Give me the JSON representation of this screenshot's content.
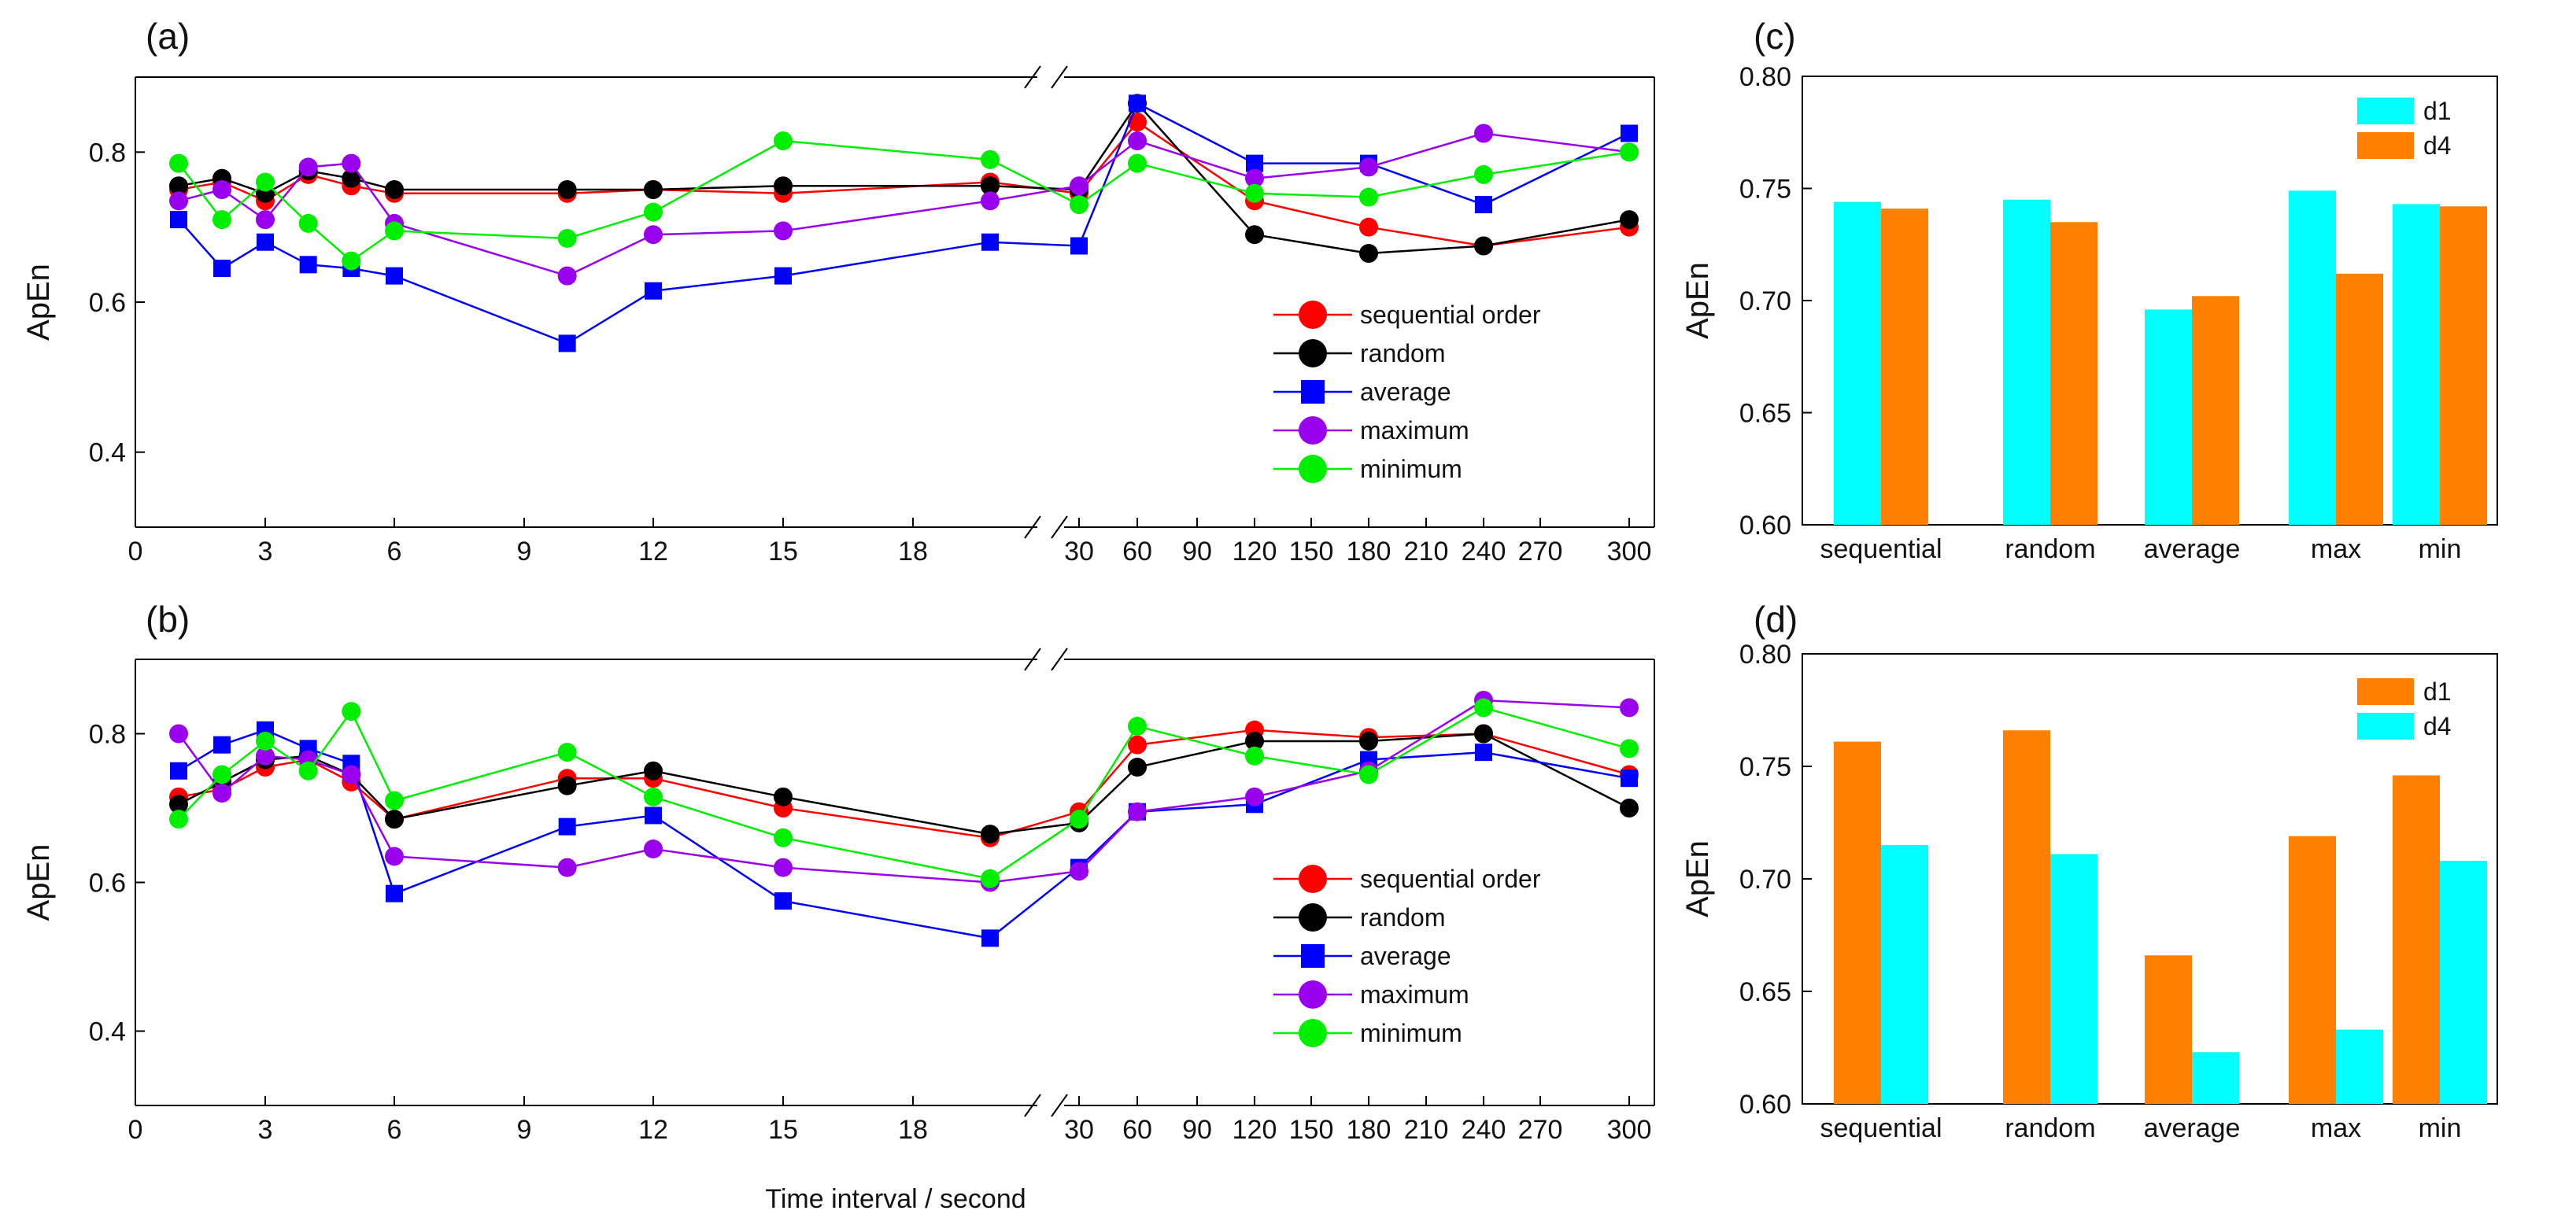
{
  "figure": {
    "xtitle": "Time interval / second"
  },
  "colors": {
    "sequential order": "#ff0000",
    "random": "#000000",
    "average": "#0000ff",
    "maximum": "#9900ee",
    "minimum": "#00ee00",
    "cyan": "#00ffff",
    "orange": "#ff8000"
  },
  "chart_data": [
    {
      "panel": "(a)",
      "type": "line",
      "ylabel": "ApEn",
      "xlabel": "",
      "ylim": [
        0.3,
        0.9
      ],
      "yticks": [
        0.4,
        0.6,
        0.8
      ],
      "ytick_labels": [
        "0.4",
        "0.6",
        "0.8"
      ],
      "x_left_ticks": [
        0,
        3,
        6,
        9,
        12,
        15,
        18
      ],
      "x_right_ticks": [
        30,
        60,
        90,
        120,
        150,
        180,
        210,
        240,
        270,
        300
      ],
      "x_break": "axis break between 20 and 30 (left segment 0–23, right segment 30–300)",
      "legend": [
        "sequential order",
        "random",
        "average",
        "maximum",
        "minimum"
      ],
      "series": [
        {
          "name": "sequential order",
          "marker": "circle",
          "x": [
            1,
            2,
            3,
            4,
            5,
            6,
            10,
            12,
            15,
            20,
            30,
            60,
            120,
            180,
            240,
            300
          ],
          "values": [
            0.75,
            0.76,
            0.735,
            0.77,
            0.755,
            0.745,
            0.745,
            0.75,
            0.745,
            0.76,
            0.745,
            0.84,
            0.735,
            0.7,
            0.675,
            0.7
          ]
        },
        {
          "name": "random",
          "marker": "circle",
          "x": [
            1,
            2,
            3,
            4,
            5,
            6,
            10,
            12,
            15,
            20,
            30,
            60,
            120,
            180,
            240,
            300
          ],
          "values": [
            0.755,
            0.765,
            0.745,
            0.775,
            0.765,
            0.75,
            0.75,
            0.75,
            0.755,
            0.755,
            0.75,
            0.865,
            0.69,
            0.665,
            0.675,
            0.71
          ]
        },
        {
          "name": "average",
          "marker": "square",
          "x": [
            1,
            2,
            3,
            4,
            5,
            6,
            10,
            12,
            15,
            20,
            30,
            60,
            120,
            180,
            240,
            300
          ],
          "values": [
            0.71,
            0.645,
            0.68,
            0.65,
            0.645,
            0.635,
            0.545,
            0.615,
            0.635,
            0.68,
            0.675,
            0.865,
            0.785,
            0.785,
            0.73,
            0.825
          ]
        },
        {
          "name": "maximum",
          "marker": "circle",
          "x": [
            1,
            2,
            3,
            4,
            5,
            6,
            10,
            12,
            15,
            20,
            30,
            60,
            120,
            180,
            240,
            300
          ],
          "values": [
            0.735,
            0.75,
            0.71,
            0.78,
            0.785,
            0.705,
            0.635,
            0.69,
            0.695,
            0.735,
            0.755,
            0.815,
            0.765,
            0.78,
            0.825,
            0.8
          ]
        },
        {
          "name": "minimum",
          "marker": "circle",
          "x": [
            1,
            2,
            3,
            4,
            5,
            6,
            10,
            12,
            15,
            20,
            30,
            60,
            120,
            180,
            240,
            300
          ],
          "values": [
            0.785,
            0.71,
            0.76,
            0.705,
            0.655,
            0.695,
            0.685,
            0.72,
            0.815,
            0.79,
            0.73,
            0.785,
            0.745,
            0.74,
            0.77,
            0.8
          ]
        }
      ]
    },
    {
      "panel": "(b)",
      "type": "line",
      "ylabel": "ApEn",
      "xlabel": "Time interval / second",
      "ylim": [
        0.3,
        0.9
      ],
      "yticks": [
        0.4,
        0.6,
        0.8
      ],
      "ytick_labels": [
        "0.4",
        "0.6",
        "0.8"
      ],
      "x_left_ticks": [
        0,
        3,
        6,
        9,
        12,
        15,
        18
      ],
      "x_right_ticks": [
        30,
        60,
        90,
        120,
        150,
        180,
        210,
        240,
        270,
        300
      ],
      "legend": [
        "sequential order",
        "random",
        "average",
        "maximum",
        "minimum"
      ],
      "series": [
        {
          "name": "sequential order",
          "marker": "circle",
          "x": [
            1,
            2,
            3,
            4,
            5,
            6,
            10,
            12,
            15,
            20,
            30,
            60,
            120,
            180,
            240,
            300
          ],
          "values": [
            0.715,
            0.725,
            0.755,
            0.765,
            0.735,
            0.685,
            0.74,
            0.74,
            0.7,
            0.66,
            0.695,
            0.785,
            0.805,
            0.795,
            0.8,
            0.745
          ]
        },
        {
          "name": "random",
          "marker": "circle",
          "x": [
            1,
            2,
            3,
            4,
            5,
            6,
            10,
            12,
            15,
            20,
            30,
            60,
            120,
            180,
            240,
            300
          ],
          "values": [
            0.705,
            0.735,
            0.765,
            0.77,
            0.745,
            0.685,
            0.73,
            0.75,
            0.715,
            0.665,
            0.68,
            0.755,
            0.79,
            0.79,
            0.8,
            0.7
          ]
        },
        {
          "name": "average",
          "marker": "square",
          "x": [
            1,
            2,
            3,
            4,
            5,
            6,
            10,
            12,
            15,
            20,
            30,
            60,
            120,
            180,
            240,
            300
          ],
          "values": [
            0.75,
            0.785,
            0.805,
            0.78,
            0.76,
            0.585,
            0.675,
            0.69,
            0.575,
            0.525,
            0.62,
            0.695,
            0.705,
            0.765,
            0.775,
            0.74
          ]
        },
        {
          "name": "maximum",
          "marker": "circle",
          "x": [
            1,
            2,
            3,
            4,
            5,
            6,
            10,
            12,
            15,
            20,
            30,
            60,
            120,
            180,
            240,
            300
          ],
          "values": [
            0.8,
            0.72,
            0.77,
            0.765,
            0.745,
            0.635,
            0.62,
            0.645,
            0.62,
            0.6,
            0.615,
            0.695,
            0.715,
            0.75,
            0.845,
            0.835
          ]
        },
        {
          "name": "minimum",
          "marker": "circle",
          "x": [
            1,
            2,
            3,
            4,
            5,
            6,
            10,
            12,
            15,
            20,
            30,
            60,
            120,
            180,
            240,
            300
          ],
          "values": [
            0.685,
            0.745,
            0.79,
            0.75,
            0.83,
            0.71,
            0.775,
            0.715,
            0.66,
            0.605,
            0.685,
            0.81,
            0.77,
            0.745,
            0.835,
            0.78
          ]
        }
      ]
    },
    {
      "panel": "(c)",
      "type": "bar",
      "ylabel": "ApEn",
      "categories": [
        "sequential",
        "random",
        "average",
        "max",
        "min"
      ],
      "ylim": [
        0.6,
        0.8
      ],
      "yticks": [
        0.6,
        0.65,
        0.7,
        0.75,
        0.8
      ],
      "ytick_labels": [
        "0.60",
        "0.65",
        "0.70",
        "0.75",
        "0.80"
      ],
      "legend_position": "top-right",
      "series": [
        {
          "name": "d1",
          "color": "cyan",
          "values": [
            0.744,
            0.745,
            0.696,
            0.749,
            0.743
          ]
        },
        {
          "name": "d4",
          "color": "orange",
          "values": [
            0.741,
            0.735,
            0.702,
            0.712,
            0.742
          ]
        }
      ]
    },
    {
      "panel": "(d)",
      "type": "bar",
      "ylabel": "ApEn",
      "categories": [
        "sequential",
        "random",
        "average",
        "max",
        "min"
      ],
      "ylim": [
        0.6,
        0.8
      ],
      "yticks": [
        0.6,
        0.65,
        0.7,
        0.75,
        0.8
      ],
      "ytick_labels": [
        "0.60",
        "0.65",
        "0.70",
        "0.75",
        "0.80"
      ],
      "legend_position": "top-right",
      "series": [
        {
          "name": "d1",
          "color": "orange",
          "values": [
            0.761,
            0.766,
            0.666,
            0.719,
            0.746
          ]
        },
        {
          "name": "d4",
          "color": "cyan",
          "values": [
            0.715,
            0.711,
            0.623,
            0.633,
            0.708
          ]
        }
      ]
    }
  ]
}
